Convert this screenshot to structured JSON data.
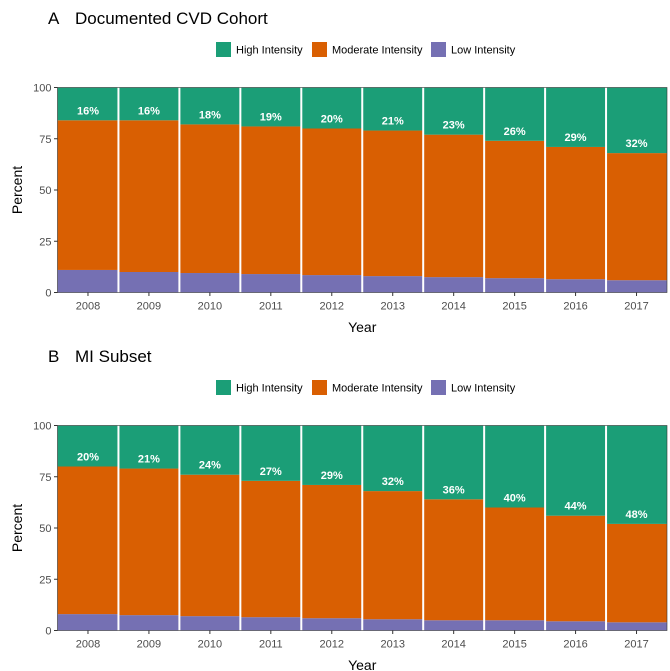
{
  "colors": {
    "high": "#1b9e77",
    "moderate": "#d95f02",
    "low": "#7570b3",
    "separator": "#ffffff",
    "axis_tick": "#333333",
    "tick_text": "#4d4d4d"
  },
  "legend": {
    "items": [
      {
        "key": "high",
        "label": "High Intensity"
      },
      {
        "key": "moderate",
        "label": "Moderate Intensity"
      },
      {
        "key": "low",
        "label": "Low Intensity"
      }
    ]
  },
  "chart_data": [
    {
      "type": "bar",
      "stacked": true,
      "panel_tag": "A",
      "title": "Documented CVD Cohort",
      "xlabel": "Year",
      "ylabel": "Percent",
      "ylim": [
        0,
        100
      ],
      "yticks": [
        0,
        25,
        50,
        75,
        100
      ],
      "legend_position": "top",
      "categories": [
        "2008",
        "2009",
        "2010",
        "2011",
        "2012",
        "2013",
        "2014",
        "2015",
        "2016",
        "2017"
      ],
      "series": [
        {
          "name": "Low Intensity",
          "key": "low",
          "values": [
            11,
            10,
            9.5,
            9,
            8.5,
            8,
            7.5,
            7,
            6.5,
            6
          ]
        },
        {
          "name": "Moderate Intensity",
          "key": "moderate",
          "values": [
            73,
            74,
            72.5,
            72,
            71.5,
            71,
            69.5,
            67,
            64.5,
            62
          ]
        },
        {
          "name": "High Intensity",
          "key": "high",
          "values": [
            16,
            16,
            18,
            19,
            20,
            21,
            23,
            26,
            29,
            32
          ]
        }
      ],
      "data_labels": [
        "16%",
        "16%",
        "18%",
        "19%",
        "20%",
        "21%",
        "23%",
        "26%",
        "29%",
        "32%"
      ]
    },
    {
      "type": "bar",
      "stacked": true,
      "panel_tag": "B",
      "title": "MI Subset",
      "xlabel": "Year",
      "ylabel": "Percent",
      "ylim": [
        0,
        100
      ],
      "yticks": [
        0,
        25,
        50,
        75,
        100
      ],
      "legend_position": "top",
      "categories": [
        "2008",
        "2009",
        "2010",
        "2011",
        "2012",
        "2013",
        "2014",
        "2015",
        "2016",
        "2017"
      ],
      "series": [
        {
          "name": "Low Intensity",
          "key": "low",
          "values": [
            8,
            7.5,
            7,
            6.5,
            6,
            5.5,
            5,
            5,
            4.5,
            4
          ]
        },
        {
          "name": "Moderate Intensity",
          "key": "moderate",
          "values": [
            72,
            71.5,
            69,
            66.5,
            65,
            62.5,
            59,
            55,
            51.5,
            48
          ]
        },
        {
          "name": "High Intensity",
          "key": "high",
          "values": [
            20,
            21,
            24,
            27,
            29,
            32,
            36,
            40,
            44,
            48
          ]
        }
      ],
      "data_labels": [
        "20%",
        "21%",
        "24%",
        "27%",
        "29%",
        "32%",
        "36%",
        "40%",
        "44%",
        "48%"
      ]
    }
  ]
}
